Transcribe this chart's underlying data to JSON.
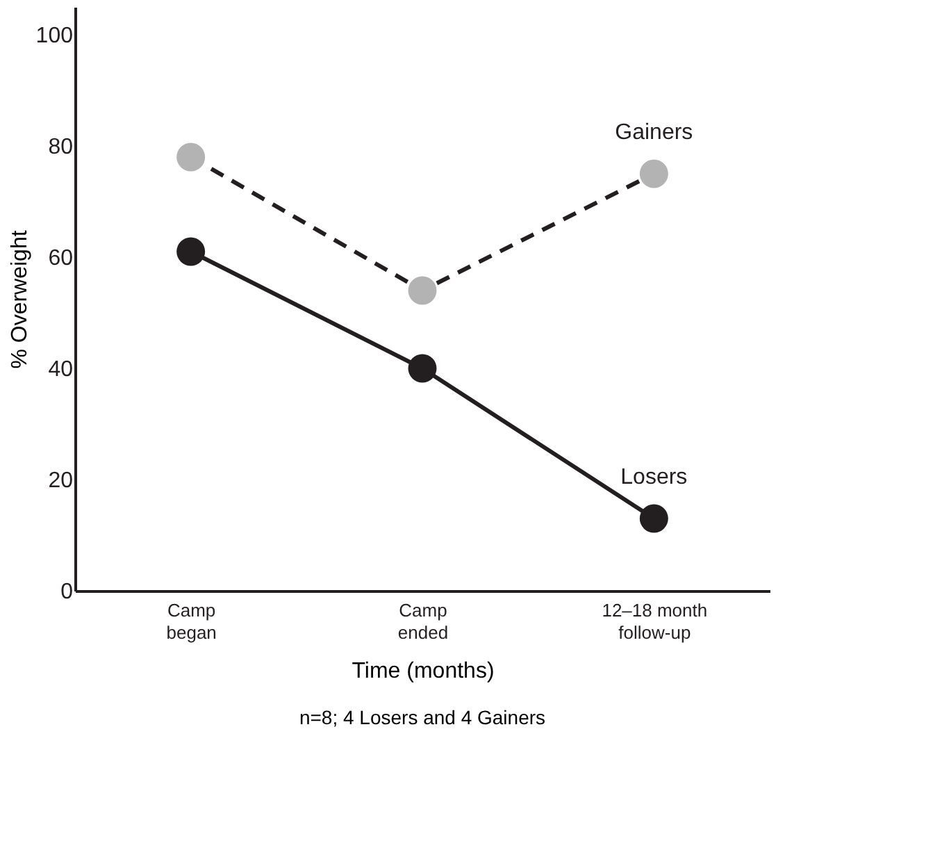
{
  "chart_data": {
    "type": "line",
    "xlabel": "Time (months)",
    "ylabel": "% Overweight",
    "categories": [
      "Camp\nbegan",
      "Camp\nended",
      "12–18 month\nfollow-up"
    ],
    "series": [
      {
        "name": "Gainers",
        "color": "#b3b3b3",
        "values": [
          78,
          54,
          75
        ],
        "line_style": "dashed"
      },
      {
        "name": "Losers",
        "color": "#231f20",
        "values": [
          61,
          40,
          13
        ],
        "line_style": "solid"
      }
    ],
    "ylim": [
      0,
      105
    ],
    "yticks": [
      0,
      20,
      40,
      60,
      80,
      100
    ],
    "grid": false,
    "marker": "circle",
    "annotations": [
      "n=8; 4 Losers and 4 Gainers"
    ]
  }
}
